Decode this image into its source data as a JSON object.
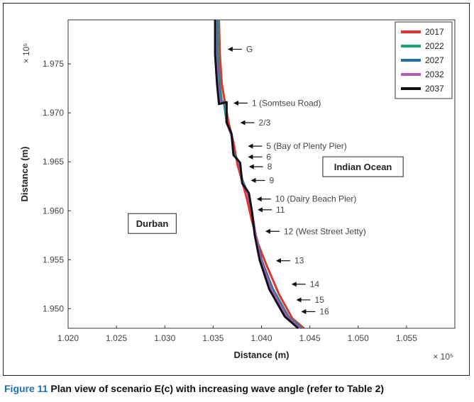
{
  "caption": {
    "label": "Figure 11",
    "text": "Plan view of scenario E(c) with increasing wave angle (refer to Table 2)"
  },
  "chart_data": {
    "type": "line",
    "xlabel": "Distance (m)",
    "ylabel": "Distance (m)",
    "x_exponent": "× 10⁵",
    "y_exponent": "× 10⁵",
    "xlim": [
      1.02,
      1.06
    ],
    "ylim": [
      1.948,
      1.9795
    ],
    "x_ticks": [
      "1.020",
      "1.025",
      "1.030",
      "1.035",
      "1.040",
      "1.045",
      "1.050",
      "1.055"
    ],
    "y_ticks": [
      "1.950",
      "1.955",
      "1.960",
      "1.965",
      "1.970",
      "1.975"
    ],
    "x_tick_values": [
      1.02,
      1.025,
      1.03,
      1.035,
      1.04,
      1.045,
      1.05,
      1.055
    ],
    "y_tick_values": [
      1.95,
      1.955,
      1.96,
      1.965,
      1.97,
      1.975
    ],
    "legend_position": "top-right",
    "series": [
      {
        "name": "2017",
        "color": "#e8312f",
        "points": [
          [
            1.0356,
            1.9795
          ],
          [
            1.0357,
            1.976
          ],
          [
            1.0359,
            1.973
          ],
          [
            1.0362,
            1.9712
          ],
          [
            1.0366,
            1.969
          ],
          [
            1.0371,
            1.967
          ],
          [
            1.0375,
            1.9648
          ],
          [
            1.038,
            1.963
          ],
          [
            1.0385,
            1.9612
          ],
          [
            1.039,
            1.959
          ],
          [
            1.0397,
            1.9565
          ],
          [
            1.0405,
            1.9545
          ],
          [
            1.0418,
            1.9515
          ],
          [
            1.0432,
            1.949
          ],
          [
            1.0444,
            1.948
          ]
        ]
      },
      {
        "name": "2022",
        "color": "#1aa37a",
        "points": [
          [
            1.0355,
            1.9795
          ],
          [
            1.0355,
            1.976
          ],
          [
            1.0357,
            1.973
          ],
          [
            1.0359,
            1.9712
          ],
          [
            1.0361,
            1.9711
          ],
          [
            1.0364,
            1.969
          ],
          [
            1.0369,
            1.9677
          ],
          [
            1.0371,
            1.966
          ],
          [
            1.0377,
            1.9649
          ],
          [
            1.038,
            1.9632
          ],
          [
            1.0386,
            1.9618
          ],
          [
            1.039,
            1.96
          ],
          [
            1.0394,
            1.9575
          ],
          [
            1.04,
            1.955
          ],
          [
            1.0412,
            1.952
          ],
          [
            1.0428,
            1.9492
          ],
          [
            1.0442,
            1.948
          ]
        ]
      },
      {
        "name": "2027",
        "color": "#236fa6",
        "points": [
          [
            1.0354,
            1.9795
          ],
          [
            1.0354,
            1.976
          ],
          [
            1.0356,
            1.973
          ],
          [
            1.0358,
            1.9711
          ],
          [
            1.0362,
            1.9711
          ],
          [
            1.0364,
            1.969
          ],
          [
            1.0369,
            1.9677
          ],
          [
            1.0371,
            1.9659
          ],
          [
            1.0377,
            1.9649
          ],
          [
            1.038,
            1.9631
          ],
          [
            1.0386,
            1.9618
          ],
          [
            1.039,
            1.96
          ],
          [
            1.0394,
            1.9575
          ],
          [
            1.04,
            1.955
          ],
          [
            1.0411,
            1.952
          ],
          [
            1.0427,
            1.9492
          ],
          [
            1.0441,
            1.948
          ]
        ]
      },
      {
        "name": "2032",
        "color": "#b05bb5",
        "points": [
          [
            1.0353,
            1.9795
          ],
          [
            1.0353,
            1.976
          ],
          [
            1.0355,
            1.973
          ],
          [
            1.0357,
            1.971
          ],
          [
            1.0363,
            1.9711
          ],
          [
            1.0364,
            1.969
          ],
          [
            1.0369,
            1.9678
          ],
          [
            1.0371,
            1.9658
          ],
          [
            1.0377,
            1.9649
          ],
          [
            1.038,
            1.963
          ],
          [
            1.0386,
            1.9618
          ],
          [
            1.039,
            1.96
          ],
          [
            1.0394,
            1.9575
          ],
          [
            1.0399,
            1.955
          ],
          [
            1.041,
            1.952
          ],
          [
            1.0426,
            1.9492
          ],
          [
            1.044,
            1.948
          ]
        ]
      },
      {
        "name": "2037",
        "color": "#111111",
        "points": [
          [
            1.0352,
            1.9795
          ],
          [
            1.0352,
            1.976
          ],
          [
            1.0354,
            1.973
          ],
          [
            1.0356,
            1.9709
          ],
          [
            1.0364,
            1.9711
          ],
          [
            1.0364,
            1.969
          ],
          [
            1.0369,
            1.9679
          ],
          [
            1.0371,
            1.9657
          ],
          [
            1.0378,
            1.9649
          ],
          [
            1.038,
            1.9628
          ],
          [
            1.0387,
            1.9618
          ],
          [
            1.039,
            1.96
          ],
          [
            1.0393,
            1.9575
          ],
          [
            1.0398,
            1.955
          ],
          [
            1.0408,
            1.952
          ],
          [
            1.0424,
            1.9492
          ],
          [
            1.0438,
            1.948
          ]
        ]
      }
    ],
    "annotations": [
      {
        "text": "G",
        "x": 1.0365,
        "y": 1.9765
      },
      {
        "text": "1 (Somtseu Road)",
        "x": 1.0371,
        "y": 1.971
      },
      {
        "text": "2/3",
        "x": 1.0378,
        "y": 1.969
      },
      {
        "text": "5 (Bay of Plenty Pier)",
        "x": 1.0386,
        "y": 1.9666
      },
      {
        "text": "6",
        "x": 1.0386,
        "y": 1.9655
      },
      {
        "text": "8",
        "x": 1.0387,
        "y": 1.9645
      },
      {
        "text": "9",
        "x": 1.0389,
        "y": 1.9631
      },
      {
        "text": "10 (Dairy Beach Pier)",
        "x": 1.0395,
        "y": 1.9612
      },
      {
        "text": "11",
        "x": 1.0396,
        "y": 1.9601
      },
      {
        "text": "12 (West Street Jetty)",
        "x": 1.0404,
        "y": 1.9579
      },
      {
        "text": "13",
        "x": 1.0415,
        "y": 1.9549
      },
      {
        "text": "14",
        "x": 1.0431,
        "y": 1.9525
      },
      {
        "text": "15",
        "x": 1.0436,
        "y": 1.9509
      },
      {
        "text": "16",
        "x": 1.0441,
        "y": 1.9497
      }
    ],
    "regions": [
      {
        "text": "Indian Ocean",
        "x": 1.0505,
        "y": 1.9645
      },
      {
        "text": "Durban",
        "x": 1.0287,
        "y": 1.9587
      }
    ]
  }
}
